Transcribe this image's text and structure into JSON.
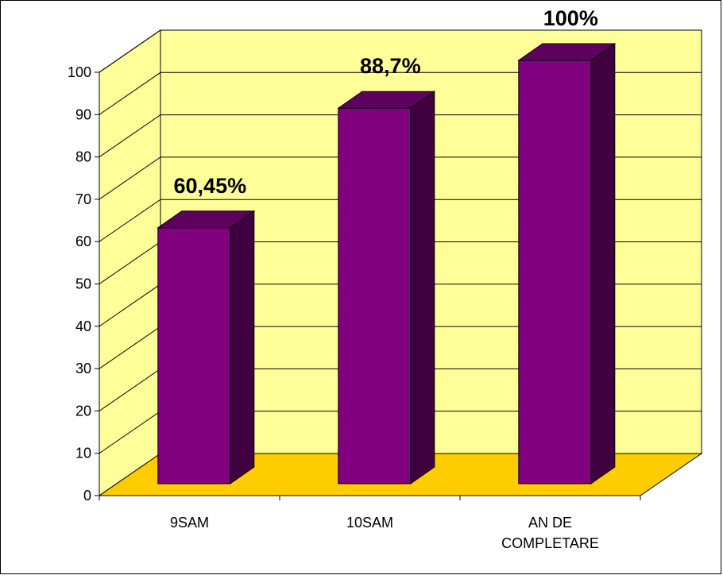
{
  "chart_data": {
    "type": "bar",
    "title": "",
    "xlabel": "",
    "ylabel": "",
    "categories": [
      [
        "9SAM"
      ],
      [
        "10SAM"
      ],
      [
        "AN DE",
        "COMPLETARE"
      ]
    ],
    "values": [
      60.45,
      88.7,
      100
    ],
    "data_labels": [
      "60,45%",
      "88,7%",
      "100%"
    ],
    "ylim": [
      0,
      100
    ],
    "yticks": [
      0,
      10,
      20,
      30,
      40,
      50,
      60,
      70,
      80,
      90,
      100
    ],
    "grid": true,
    "legend": "none",
    "is_3d": true,
    "colors": {
      "bar_front": "#800080",
      "bar_side": "#400040",
      "bar_top": "#5e005e",
      "back_wall": "#ffff99",
      "side_wall": "#ffff99",
      "floor": "#ffcc00",
      "gridline": "#000000"
    }
  }
}
